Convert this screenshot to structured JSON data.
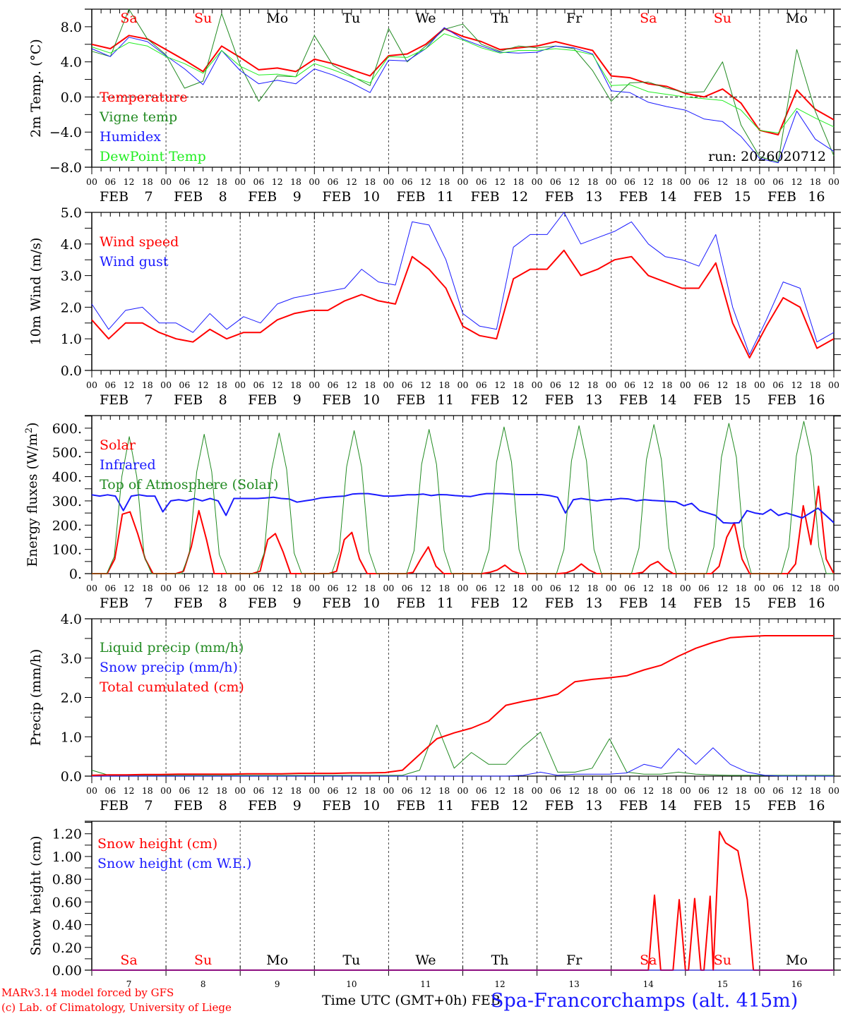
{
  "credits": {
    "line1": "MARv3.14 model forced by GFS",
    "line2": "(c) Lab. of Climatology, University of Liege"
  },
  "x_title": "Time UTC (GMT+0h) FEB",
  "station": "Spa-Francorchamps (alt. 415m)",
  "run_label": "run: 2026020712",
  "colors": {
    "red": "#ff0000",
    "green": "#228b22",
    "blue": "#1a1aff",
    "lime": "#22ee22",
    "weekend": "#ff0000",
    "weekday": "#000000"
  },
  "days": [
    {
      "abbr": "Sa",
      "date": "7",
      "weekend": true
    },
    {
      "abbr": "Su",
      "date": "8",
      "weekend": true
    },
    {
      "abbr": "Mo",
      "date": "9",
      "weekend": false
    },
    {
      "abbr": "Tu",
      "date": "10",
      "weekend": false
    },
    {
      "abbr": "We",
      "date": "11",
      "weekend": false
    },
    {
      "abbr": "Th",
      "date": "12",
      "weekend": false
    },
    {
      "abbr": "Fr",
      "date": "13",
      "weekend": false
    },
    {
      "abbr": "Sa",
      "date": "14",
      "weekend": true
    },
    {
      "abbr": "Su",
      "date": "15",
      "weekend": true
    },
    {
      "abbr": "Mo",
      "date": "16",
      "weekend": false
    }
  ],
  "hour_ticks": [
    "00",
    "06",
    "12",
    "18"
  ],
  "month": "FEB",
  "chart_data": [
    {
      "type": "line",
      "title": "2m Temperature",
      "ylabel": "2m Temp. (°C)",
      "ylim": [
        -8,
        10
      ],
      "yticks": [
        "8.0",
        "4.0",
        "0.0",
        "-4.0",
        "-8.0"
      ],
      "ytick_values": [
        8,
        4,
        0,
        -4,
        -8
      ],
      "zero_line": true,
      "x_hours_step": 6,
      "series": [
        {
          "name": "Temperature",
          "color": "red",
          "width": 2,
          "values": [
            6.0,
            5.5,
            7.0,
            6.6,
            5.4,
            4.2,
            2.9,
            5.8,
            4.5,
            3.1,
            3.3,
            2.9,
            4.3,
            3.8,
            3.1,
            2.4,
            4.7,
            4.9,
            6.0,
            7.8,
            6.9,
            6.3,
            5.4,
            5.6,
            5.8,
            6.3,
            5.8,
            5.3,
            2.4,
            2.2,
            1.5,
            1.2,
            0.4,
            0.0,
            0.9,
            -0.7,
            -3.8,
            -4.3,
            0.8,
            -1.4,
            -2.6
          ]
        },
        {
          "name": "Vigne temp",
          "color": "green",
          "width": 1,
          "values": [
            5.2,
            4.6,
            10.0,
            6.6,
            4.8,
            1.0,
            1.8,
            9.5,
            3.6,
            -0.5,
            2.4,
            2.3,
            7.0,
            3.6,
            2.4,
            1.3,
            7.8,
            4.0,
            5.8,
            7.7,
            8.3,
            6.0,
            5.2,
            5.8,
            5.6,
            5.8,
            5.5,
            3.0,
            -0.5,
            1.6,
            1.7,
            1.0,
            0.5,
            0.6,
            4.0,
            -3.2,
            -6.8,
            -7.4,
            5.4,
            -1.6,
            -6.7
          ]
        },
        {
          "name": "Humidex",
          "color": "blue",
          "width": 1,
          "values": [
            5.5,
            4.6,
            6.8,
            6.3,
            4.7,
            3.2,
            1.4,
            5.3,
            3.0,
            1.5,
            1.9,
            1.5,
            3.2,
            2.5,
            1.6,
            0.5,
            4.2,
            4.1,
            5.5,
            7.9,
            6.6,
            5.8,
            5.1,
            5.0,
            5.1,
            5.8,
            5.6,
            4.9,
            0.7,
            0.5,
            -0.6,
            -1.1,
            -1.5,
            -2.5,
            -2.8,
            -4.5,
            -7.0,
            -7.5,
            -1.6,
            -4.8,
            -6.2
          ]
        },
        {
          "name": "DewPoint Temp",
          "color": "lime",
          "width": 1,
          "values": [
            5.7,
            5.0,
            6.2,
            5.8,
            4.6,
            3.8,
            2.7,
            5.3,
            3.5,
            2.5,
            2.6,
            2.3,
            3.8,
            3.1,
            2.3,
            1.6,
            4.6,
            4.5,
            5.5,
            7.2,
            6.5,
            5.6,
            5.0,
            5.3,
            5.3,
            5.5,
            5.3,
            4.8,
            1.3,
            1.4,
            0.6,
            0.3,
            0.0,
            -0.2,
            -0.4,
            -1.5,
            -3.8,
            -4.1,
            -1.3,
            -2.4,
            -3.4
          ]
        }
      ],
      "legend_position": "bottom-left"
    },
    {
      "type": "line",
      "title": "10m Wind",
      "ylabel": "10m Wind (m/s)",
      "ylim": [
        0,
        5
      ],
      "yticks": [
        "5.0",
        "4.0",
        "3.0",
        "2.0",
        "1.0",
        "0.0"
      ],
      "ytick_values": [
        5,
        4,
        3,
        2,
        1,
        0
      ],
      "x_hours_step": 6,
      "series": [
        {
          "name": "Wind speed",
          "color": "red",
          "width": 2,
          "values": [
            1.6,
            1.0,
            1.5,
            1.5,
            1.2,
            1.0,
            0.9,
            1.3,
            1.0,
            1.2,
            1.2,
            1.6,
            1.8,
            1.9,
            1.9,
            2.2,
            2.4,
            2.2,
            2.1,
            3.6,
            3.2,
            2.6,
            1.4,
            1.1,
            1.0,
            2.9,
            3.2,
            3.2,
            3.8,
            3.0,
            3.2,
            3.5,
            3.6,
            3.0,
            2.8,
            2.6,
            2.6,
            3.4,
            1.5,
            0.4,
            1.4,
            2.3,
            2.0,
            0.7,
            1.0
          ]
        },
        {
          "name": "Wind gust",
          "color": "blue",
          "width": 1,
          "values": [
            2.1,
            1.3,
            1.9,
            2.0,
            1.5,
            1.5,
            1.2,
            1.8,
            1.3,
            1.7,
            1.5,
            2.1,
            2.3,
            2.4,
            2.5,
            2.6,
            3.2,
            2.8,
            2.7,
            4.7,
            4.6,
            3.5,
            1.8,
            1.4,
            1.3,
            3.9,
            4.3,
            4.3,
            5.0,
            4.0,
            4.2,
            4.4,
            4.7,
            4.0,
            3.6,
            3.5,
            3.3,
            4.3,
            2.0,
            0.5,
            1.6,
            2.8,
            2.6,
            0.9,
            1.2
          ]
        }
      ],
      "legend_position": "top-left"
    },
    {
      "type": "line",
      "title": "Energy fluxes",
      "ylabel": "Energy fluxes (W/m2)",
      "ylim": [
        0,
        652
      ],
      "yticks": [
        "600.",
        "500.",
        "400.",
        "300.",
        "200.",
        "100.",
        "0."
      ],
      "ytick_values": [
        600,
        500,
        400,
        300,
        200,
        100,
        0
      ],
      "x_hours_step": 3,
      "series": [
        {
          "name": "Solar",
          "color": "red",
          "width": 2,
          "values": [
            0,
            0,
            0,
            60,
            245,
            255,
            165,
            60,
            0,
            0,
            0,
            0,
            10,
            110,
            260,
            140,
            0,
            0,
            0,
            0,
            0,
            0,
            10,
            140,
            165,
            90,
            0,
            0,
            0,
            0,
            0,
            0,
            10,
            140,
            170,
            60,
            0,
            0,
            0,
            0,
            0,
            0,
            5,
            60,
            110,
            30,
            0,
            0,
            0,
            0,
            0,
            0,
            5,
            15,
            35,
            10,
            0,
            0,
            0,
            0,
            0,
            0,
            3,
            15,
            40,
            15,
            0,
            0,
            0,
            0,
            0,
            0,
            5,
            35,
            50,
            20,
            0,
            0,
            0,
            0,
            0,
            0,
            30,
            150,
            210,
            60,
            0,
            0,
            0,
            0,
            0,
            0,
            40,
            280,
            120,
            360,
            60,
            0
          ]
        },
        {
          "name": "Infrared",
          "color": "blue",
          "width": 2,
          "values": [
            325,
            320,
            325,
            320,
            260,
            320,
            325,
            320,
            320,
            255,
            300,
            305,
            300,
            310,
            300,
            310,
            300,
            240,
            310,
            310,
            310,
            310,
            312,
            315,
            310,
            308,
            295,
            300,
            305,
            312,
            315,
            318,
            320,
            328,
            330,
            330,
            325,
            320,
            320,
            322,
            325,
            325,
            328,
            322,
            326,
            325,
            322,
            320,
            318,
            325,
            330,
            330,
            330,
            328,
            326,
            326,
            326,
            326,
            322,
            315,
            250,
            305,
            310,
            305,
            300,
            305,
            306,
            310,
            308,
            300,
            305,
            302,
            300,
            298,
            296,
            280,
            290,
            260,
            250,
            240,
            210,
            208,
            210,
            260,
            250,
            245,
            265,
            240,
            250,
            240,
            230,
            250,
            270,
            240,
            210
          ]
        },
        {
          "name": "Top of Atmosphere (Solar)",
          "color": "green",
          "width": 1,
          "values": [
            0,
            0,
            0,
            70,
            400,
            565,
            400,
            70,
            0,
            0,
            0,
            0,
            0,
            80,
            420,
            575,
            420,
            80,
            0,
            0,
            0,
            0,
            0,
            85,
            430,
            580,
            430,
            85,
            0,
            0,
            0,
            0,
            0,
            90,
            440,
            590,
            440,
            90,
            0,
            0,
            0,
            0,
            0,
            95,
            450,
            595,
            450,
            95,
            0,
            0,
            0,
            0,
            0,
            100,
            460,
            605,
            460,
            100,
            0,
            0,
            0,
            0,
            0,
            100,
            465,
            610,
            465,
            100,
            0,
            0,
            0,
            0,
            0,
            105,
            470,
            615,
            470,
            105,
            0,
            0,
            0,
            0,
            0,
            110,
            480,
            620,
            480,
            110,
            0,
            0,
            0,
            0,
            0,
            110,
            485,
            628,
            485,
            110,
            0,
            0
          ]
        }
      ],
      "legend_position": "top-left"
    },
    {
      "type": "line",
      "title": "Precip",
      "ylabel": "Precip (mm/h)",
      "ylim": [
        0,
        4
      ],
      "yticks": [
        "4.0",
        "3.0",
        "2.0",
        "1.0",
        "0.0"
      ],
      "ytick_values": [
        4,
        3,
        2,
        1,
        0
      ],
      "x_hours_step": 6,
      "series": [
        {
          "name": "Liquid precip (mm/h)",
          "color": "green",
          "width": 1,
          "values": [
            0.15,
            0.02,
            0.02,
            0.02,
            0.02,
            0.02,
            0.02,
            0.02,
            0.02,
            0.02,
            0.02,
            0.02,
            0.02,
            0.02,
            0.02,
            0.02,
            0.02,
            0.02,
            0.02,
            0.15,
            1.3,
            0.2,
            0.6,
            0.3,
            0.3,
            0.75,
            1.12,
            0.1,
            0.1,
            0.2,
            0.95,
            0.1,
            0.05,
            0.05,
            0.1,
            0.05,
            0.03,
            0.02,
            0.02,
            0.02,
            0.02,
            0.02,
            0.02,
            0.02
          ]
        },
        {
          "name": "Snow precip (mm/h)",
          "color": "blue",
          "width": 1,
          "values": [
            0,
            0,
            0,
            0,
            0,
            0,
            0,
            0,
            0,
            0,
            0,
            0,
            0,
            0,
            0,
            0,
            0,
            0,
            0,
            0,
            0,
            0,
            0,
            0,
            0,
            0.02,
            0.1,
            0.02,
            0.05,
            0.05,
            0.05,
            0.08,
            0.3,
            0.2,
            0.7,
            0.3,
            0.72,
            0.3,
            0.1,
            0.02,
            0,
            0,
            0,
            0
          ]
        },
        {
          "name": "Total cumulated (cm)",
          "color": "red",
          "width": 2,
          "values": [
            0.02,
            0.03,
            0.03,
            0.04,
            0.04,
            0.05,
            0.05,
            0.05,
            0.05,
            0.06,
            0.06,
            0.06,
            0.07,
            0.07,
            0.07,
            0.08,
            0.08,
            0.09,
            0.15,
            0.55,
            0.95,
            1.1,
            1.22,
            1.4,
            1.8,
            1.9,
            1.98,
            2.08,
            2.4,
            2.46,
            2.5,
            2.55,
            2.7,
            2.82,
            3.05,
            3.25,
            3.4,
            3.52,
            3.55,
            3.57,
            3.57,
            3.57,
            3.57,
            3.57
          ]
        }
      ],
      "legend_position": "top-left"
    },
    {
      "type": "line",
      "title": "Snow height",
      "ylabel": "Snow height (cm)",
      "ylim": [
        0,
        1.31
      ],
      "yticks": [
        "1.20",
        "1.00",
        "0.80",
        "0.60",
        "0.40",
        "0.20",
        "0.00"
      ],
      "ytick_values": [
        1.2,
        1.0,
        0.8,
        0.6,
        0.4,
        0.2,
        0.0
      ],
      "series": [
        {
          "name": "Snow height (cm)",
          "color": "red",
          "width": 2,
          "points": [
            [
              0,
              0
            ],
            [
              180,
              0
            ],
            [
              182,
              0.66
            ],
            [
              184,
              0
            ],
            [
              188,
              0
            ],
            [
              190,
              0.62
            ],
            [
              192,
              0
            ],
            [
              193,
              0
            ],
            [
              195,
              0.63
            ],
            [
              197,
              0
            ],
            [
              198,
              0
            ],
            [
              200,
              0.65
            ],
            [
              201,
              0
            ],
            [
              203,
              1.22
            ],
            [
              205,
              1.12
            ],
            [
              209,
              1.05
            ],
            [
              212,
              0.62
            ],
            [
              214,
              0
            ],
            [
              240,
              0
            ]
          ]
        },
        {
          "name": "Snow height (cm W.E.)",
          "color": "blue",
          "width": 1,
          "points": [
            [
              0,
              0
            ],
            [
              240,
              0
            ]
          ]
        }
      ],
      "legend_position": "top-left"
    }
  ]
}
